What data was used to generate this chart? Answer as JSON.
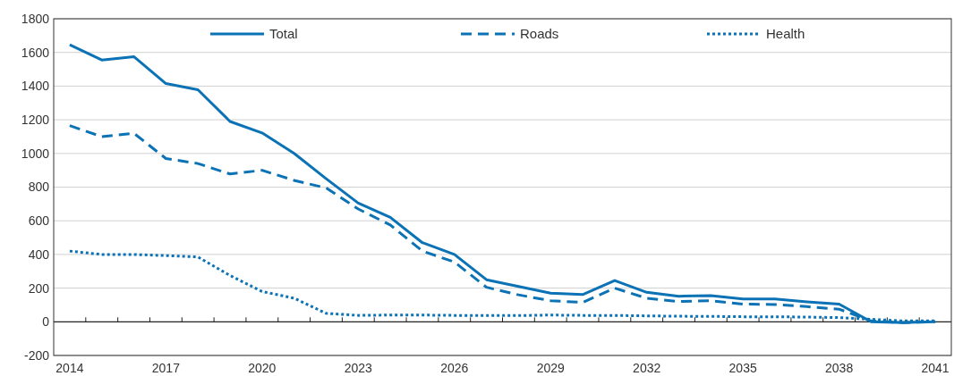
{
  "chart_data": {
    "type": "line",
    "categories": [
      "2014",
      null,
      null,
      "2017",
      null,
      null,
      "2020",
      null,
      null,
      "2023",
      null,
      null,
      "2026",
      null,
      null,
      "2029",
      null,
      null,
      "2032",
      null,
      null,
      "2035",
      null,
      null,
      "2038",
      null,
      null,
      "2041"
    ],
    "series": [
      {
        "name": "Total",
        "color": "#0a72b5",
        "line_style": "solid",
        "values": [
          1645,
          1555,
          1575,
          1415,
          1378,
          1190,
          1122,
          1000,
          850,
          705,
          620,
          470,
          400,
          250,
          210,
          170,
          162,
          245,
          175,
          152,
          155,
          135,
          135,
          118,
          105,
          0,
          -5,
          0
        ]
      },
      {
        "name": "Roads",
        "color": "#0a72b5",
        "line_style": "dashed",
        "values": [
          1165,
          1100,
          1120,
          970,
          940,
          878,
          900,
          840,
          795,
          670,
          575,
          420,
          355,
          205,
          160,
          125,
          115,
          200,
          140,
          120,
          125,
          105,
          103,
          90,
          75,
          5,
          -5,
          0
        ]
      },
      {
        "name": "Health",
        "color": "#0a72b5",
        "line_style": "dotted",
        "values": [
          420,
          400,
          400,
          393,
          385,
          275,
          180,
          140,
          50,
          38,
          40,
          40,
          38,
          37,
          37,
          40,
          38,
          38,
          35,
          33,
          32,
          30,
          30,
          28,
          25,
          15,
          5,
          5
        ]
      }
    ],
    "ylim": [
      -200,
      1800
    ],
    "yticks": [
      -200,
      0,
      200,
      400,
      600,
      800,
      1000,
      1200,
      1400,
      1600,
      1800
    ],
    "grid": "y",
    "legend": "top",
    "marker": "none"
  }
}
